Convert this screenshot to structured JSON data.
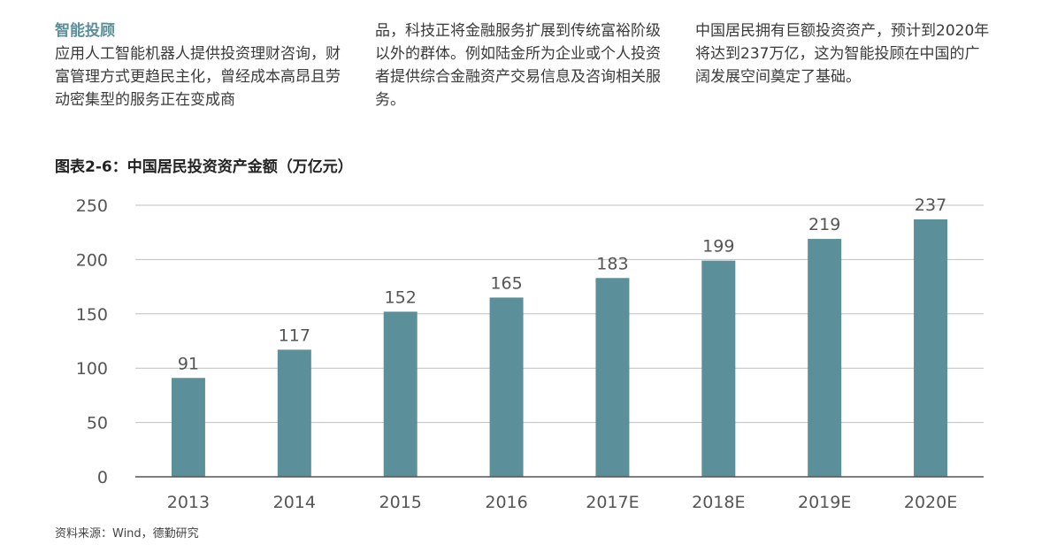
{
  "text": {
    "section_title": "智能投顾",
    "col1": "应用人工智能机器人提供投资理财咨询，财富管理方式更趋民主化，曾经成本高昂且劳动密集型的服务正在变成商",
    "col2": "品，科技正将金融服务扩展到传统富裕阶级以外的群体。例如陆金所为企业或个人投资者提供综合金融资产交易信息及咨询相关服务。",
    "col3": "中国居民拥有巨额投资资产，预计到2020年将达到237万亿，这为智能投顾在中国的广阔发展空间奠定了基础。"
  },
  "figure": {
    "title": "图表2-6：中国居民投资资产金额（万亿元）",
    "source": "资料来源：Wind，德勤研究"
  },
  "chart_data": {
    "type": "bar",
    "title": "图表2-6：中国居民投资资产金额（万亿元）",
    "categories": [
      "2013",
      "2014",
      "2015",
      "2016",
      "2017E",
      "2018E",
      "2019E",
      "2020E"
    ],
    "values": [
      91,
      117,
      152,
      165,
      183,
      199,
      219,
      237
    ],
    "data_labels": [
      "91",
      "117",
      "152",
      "165",
      "183",
      "199",
      "219",
      "237"
    ],
    "xlabel": "",
    "ylabel": "",
    "ylim": [
      0,
      250
    ],
    "yticks": [
      0,
      50,
      100,
      150,
      200,
      250
    ],
    "grid": true,
    "legend": "none",
    "bar_color": "#5b8f99",
    "grid_color": "#bfbfbf",
    "axis_color": "#555555"
  }
}
